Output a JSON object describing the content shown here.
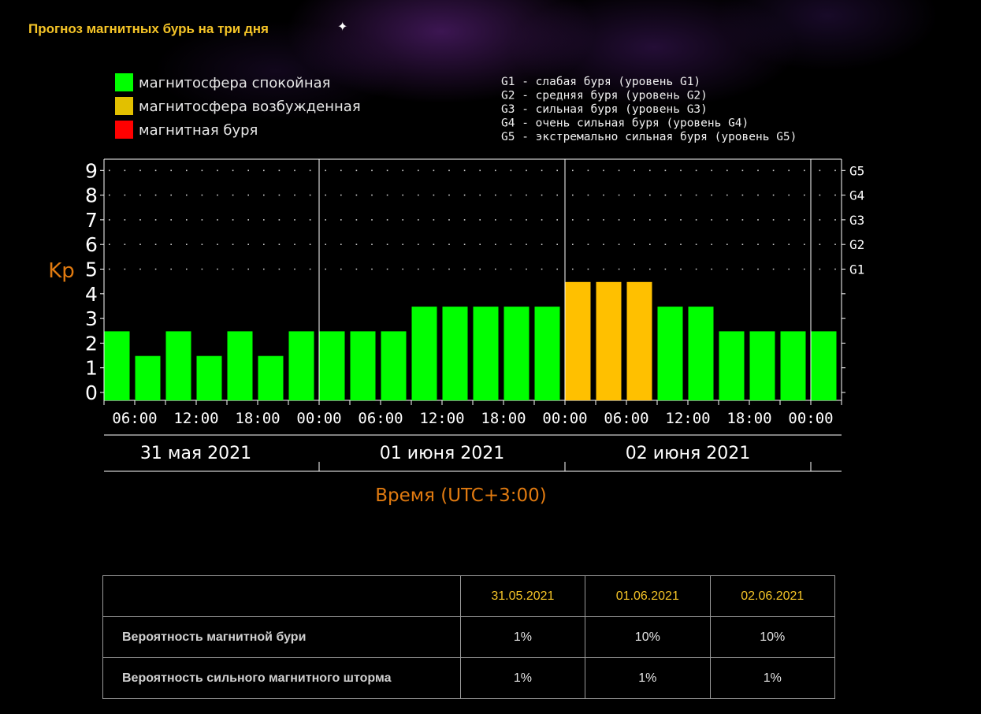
{
  "page_title": "Прогноз магнитных бурь на три дня",
  "colors": {
    "quiet": "#00ff00",
    "active": "#ffc000",
    "storm": "#ff0000",
    "accent": "#f5c427",
    "axis_label": "#e07a10"
  },
  "legend": [
    {
      "label": "магнитосфера спокойная",
      "color": "#00ff00"
    },
    {
      "label": "магнитосфера возбужденная",
      "color": "#e2c000"
    },
    {
      "label": "магнитная буря",
      "color": "#ff0000"
    }
  ],
  "g_legend": [
    "G1 - слабая буря (уровень G1)",
    "G2 - средняя буря (уровень G2)",
    "G3 - сильная буря (уровень G3)",
    "G4 - очень сильная буря (уровень G4)",
    "G5 - экстремально сильная буря (уровень G5)"
  ],
  "chart_data": {
    "type": "bar",
    "ylabel": "Kp",
    "xlabel": "Время (UTC+3:00)",
    "ylim": [
      0,
      9
    ],
    "y_ticks": [
      "0",
      "1",
      "2",
      "3",
      "4",
      "5",
      "6",
      "7",
      "8",
      "9"
    ],
    "g_ticks": [
      {
        "label": "G1",
        "kp": 5
      },
      {
        "label": "G2",
        "kp": 6
      },
      {
        "label": "G3",
        "kp": 7
      },
      {
        "label": "G4",
        "kp": 8
      },
      {
        "label": "G5",
        "kp": 9
      }
    ],
    "x_ticks": [
      "06:00",
      "12:00",
      "18:00",
      "00:00",
      "06:00",
      "12:00",
      "18:00",
      "00:00",
      "06:00",
      "12:00",
      "18:00",
      "00:00"
    ],
    "days": [
      "31 мая 2021",
      "01 июня 2021",
      "02 июня 2021"
    ],
    "interval_hours": 3,
    "values": [
      2,
      1,
      2,
      1,
      2,
      1,
      2,
      2,
      2,
      2,
      3,
      3,
      3,
      3,
      3,
      4,
      4,
      4,
      3,
      3,
      2,
      2,
      2,
      2
    ],
    "grid": true
  },
  "table": {
    "headers": [
      "",
      "31.05.2021",
      "01.06.2021",
      "02.06.2021"
    ],
    "rows": [
      {
        "label": "Вероятность магнитной бури",
        "values": [
          "1%",
          "10%",
          "10%"
        ]
      },
      {
        "label": "Вероятность сильного магнитного шторма",
        "values": [
          "1%",
          "1%",
          "1%"
        ]
      }
    ]
  }
}
